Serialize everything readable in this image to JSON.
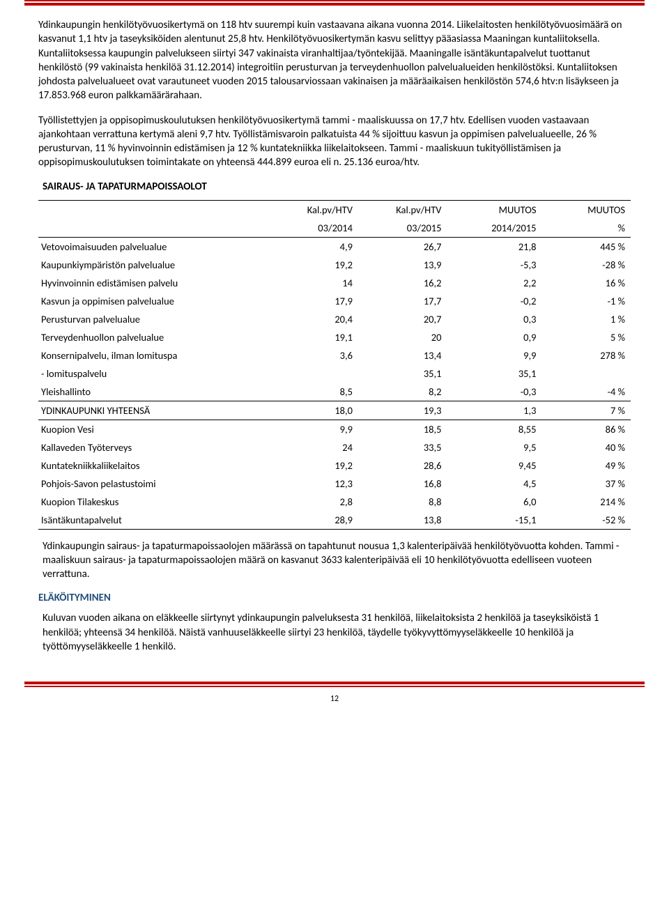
{
  "para1": "Ydinkaupungin henkilötyövuosikertymä on 118 htv suurempi kuin vastaavana aikana vuonna 2014. Liikelaitosten henkilötyövuosimäärä on kasvanut 1,1 htv ja taseyksiköiden alentunut 25,8 htv. Henkilötyövuosikertymän kasvu selittyy pääasiassa Maaningan kuntaliitoksella. Kuntaliitoksessa kaupungin palvelukseen siirtyi 347 vakinaista viranhaltijaa/työntekijää. Maaningalle isäntäkuntapalvelut tuottanut henkilöstö (99 vakinaista henkilöä 31.12.2014) integroitiin perusturvan ja terveydenhuollon palvelualueiden henkilöstöksi. Kuntaliitoksen johdosta palvelualueet ovat varautuneet vuoden 2015 talousarviossaan vakinaisen ja määräaikaisen henkilöstön 574,6 htv:n lisäykseen ja 17.853.968 euron palkkamäärärahaan.",
  "para2": "Työllistettyjen ja oppisopimuskoulutuksen henkilötyövuosikertymä tammi - maaliskuussa on 17,7 htv. Edellisen vuoden vastaavaan ajankohtaan verrattuna kertymä aleni 9,7 htv.  Työllistämisvaroin palkatuista 44 % sijoittuu kasvun ja oppimisen palvelualueelle, 26 % perusturvan, 11 % hyvinvoinnin edistämisen ja 12 % kuntatekniikka liikelaitokseen. Tammi - maaliskuun tukityöllistämisen ja oppisopimuskoulutuksen toimintakate on yhteensä 444.899 euroa eli n. 25.136 euroa/htv.",
  "section1_title": "SAIRAUS- JA TAPATURMAPOISSAOLOT",
  "table": {
    "columns": {
      "c1a": "Kal.pv/HTV",
      "c1b": "03/2014",
      "c2a": "Kal.pv/HTV",
      "c2b": "03/2015",
      "c3a": "MUUTOS",
      "c3b": "2014/2015",
      "c4a": "MUUTOS",
      "c4b": "%"
    },
    "rows": [
      {
        "label": "Vetovoimaisuuden palvelualue",
        "v1": "4,9",
        "v2": "26,7",
        "v3": "21,8",
        "v4": "445 %"
      },
      {
        "label": "Kaupunkiympäristön palvelualue",
        "v1": "19,2",
        "v2": "13,9",
        "v3": "-5,3",
        "v4": "-28 %"
      },
      {
        "label": "Hyvinvoinnin edistämisen palvelu",
        "v1": "14",
        "v2": "16,2",
        "v3": "2,2",
        "v4": "16 %"
      },
      {
        "label": "Kasvun ja oppimisen palvelualue",
        "v1": "17,9",
        "v2": "17,7",
        "v3": "-0,2",
        "v4": "-1 %"
      },
      {
        "label": "Perusturvan palvelualue",
        "v1": "20,4",
        "v2": "20,7",
        "v3": "0,3",
        "v4": "1 %"
      },
      {
        "label": "Terveydenhuollon palvelualue",
        "v1": "19,1",
        "v2": "20",
        "v3": "0,9",
        "v4": "5 %"
      },
      {
        "label": "Konsernipalvelu, ilman lomituspa",
        "v1": "3,6",
        "v2": "13,4",
        "v3": "9,9",
        "v4": "278 %"
      },
      {
        "label": "  - lomituspalvelu",
        "v1": "",
        "v2": "35,1",
        "v3": "35,1",
        "v4": ""
      },
      {
        "label": "Yleishallinto",
        "v1": "8,5",
        "v2": "8,2",
        "v3": "-0,3",
        "v4": "-4 %"
      }
    ],
    "total": {
      "label": "YDINKAUPUNKI YHTEENSÄ",
      "v1": "18,0",
      "v2": "19,3",
      "v3": "1,3",
      "v4": "7 %"
    },
    "rows2": [
      {
        "label": "Kuopion Vesi",
        "v1": "9,9",
        "v2": "18,5",
        "v3": "8,55",
        "v4": "86 %"
      },
      {
        "label": "Kallaveden Työterveys",
        "v1": "24",
        "v2": "33,5",
        "v3": "9,5",
        "v4": "40 %"
      },
      {
        "label": "Kuntatekniikkaliikelaitos",
        "v1": "19,2",
        "v2": "28,6",
        "v3": "9,45",
        "v4": "49 %"
      },
      {
        "label": "Pohjois-Savon pelastustoimi",
        "v1": "12,3",
        "v2": "16,8",
        "v3": "4,5",
        "v4": "37 %"
      },
      {
        "label": "Kuopion Tilakeskus",
        "v1": "2,8",
        "v2": "8,8",
        "v3": "6,0",
        "v4": "214 %"
      },
      {
        "label": "Isäntäkuntapalvelut",
        "v1": "28,9",
        "v2": "13,8",
        "v3": "-15,1",
        "v4": "-52 %"
      }
    ]
  },
  "para3": "Ydinkaupungin sairaus- ja tapaturmapoissaolojen määrässä on tapahtunut nousua 1,3 kalenteripäivää henkilötyövuotta kohden. Tammi - maaliskuun sairaus- ja tapaturmapoissaolojen määrä on kasvanut 3633 kalenteripäivää eli 10 henkilötyövuotta edelliseen vuoteen verrattuna.",
  "section2_title": "ELÄKÖITYMINEN",
  "para4": "Kuluvan vuoden aikana on eläkkeelle siirtynyt ydinkaupungin palveluksesta 31 henkilöä, liikelaitoksista 2 henkilöä ja taseyksiköistä 1 henkilöä; yhteensä 34 henkilöä. Näistä vanhuuseläkkeelle siirtyi 23 henkilöä, täydelle työkyvyttömyyseläkkeelle 10 henkilöä ja työttömyyseläkkeelle 1 henkilö.",
  "page_number": "12"
}
